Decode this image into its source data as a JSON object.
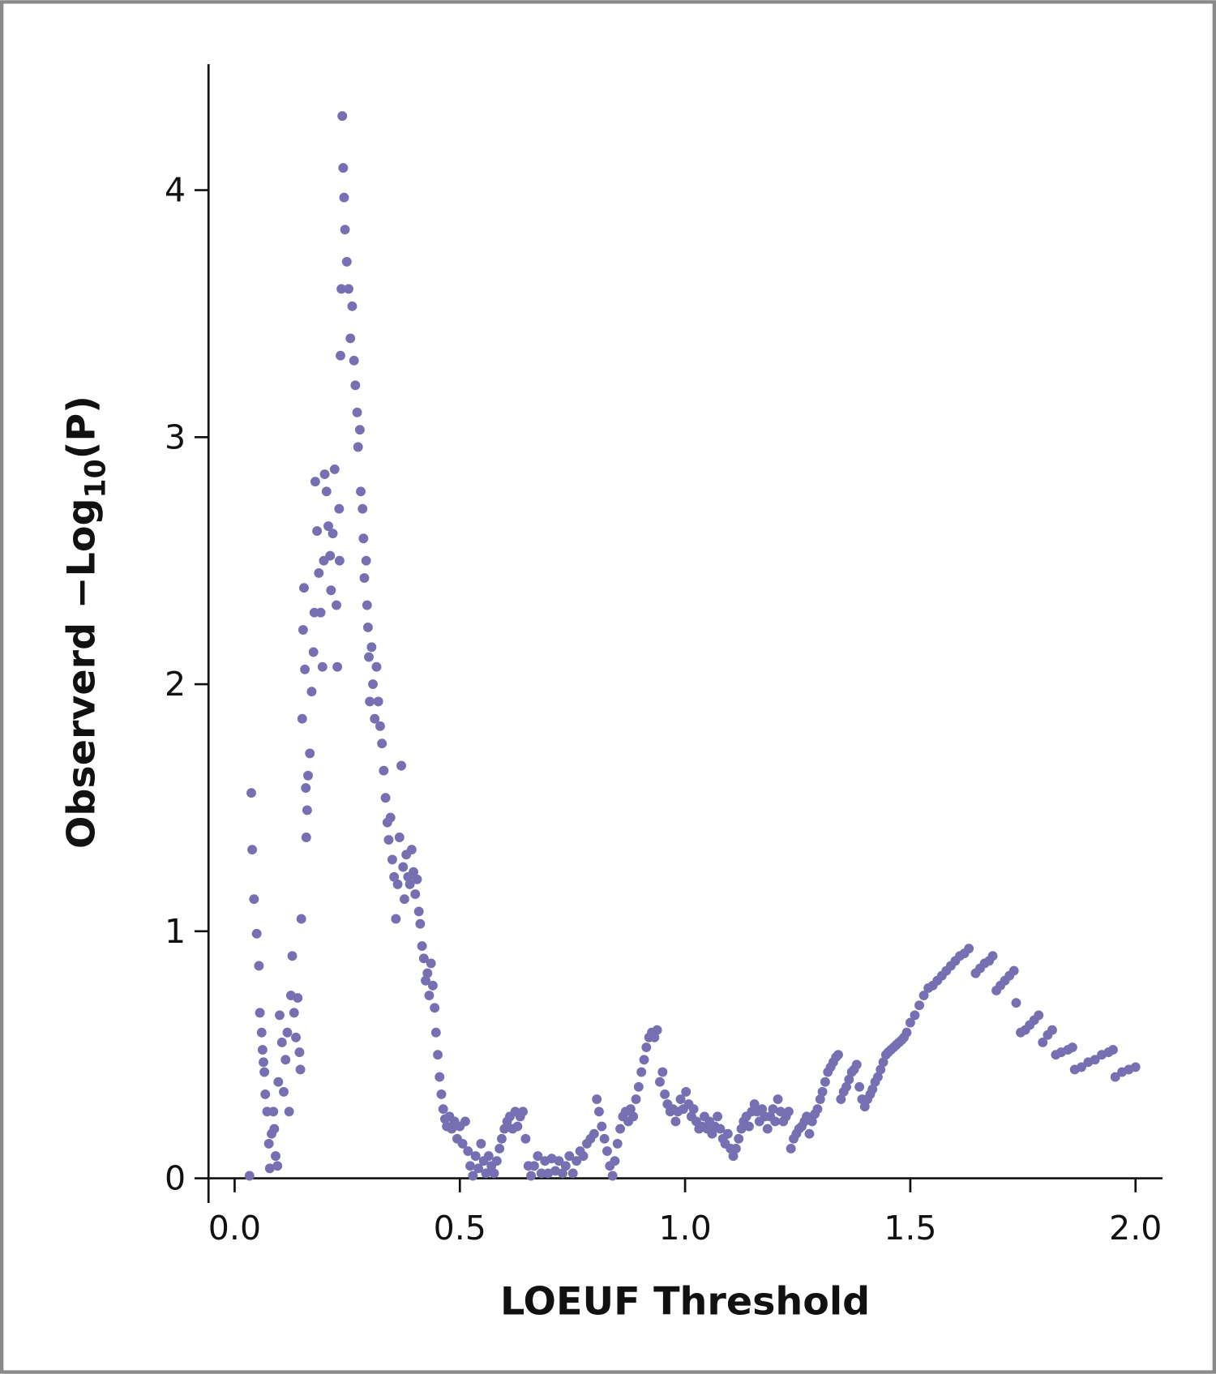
{
  "chart_data": {
    "type": "scatter",
    "x_label": "LOEUF Threshold",
    "y_label": {
      "text": "Observerd −Log",
      "sub": "10",
      "after": "(P)"
    },
    "color": "#7670b3",
    "xlim": [
      -0.058,
      2.06
    ],
    "ylim": [
      -0.1,
      4.51
    ],
    "xticks": [
      {
        "value": 0,
        "label": "0.0"
      },
      0.5,
      {
        "value": 1,
        "label": "1.0"
      },
      1.5,
      {
        "value": 2,
        "label": "2.0"
      }
    ],
    "yticks": [
      0,
      1,
      2,
      3,
      4
    ],
    "x": [
      0.033,
      0.037,
      0.039,
      0.043,
      0.049,
      0.054,
      0.056,
      0.06,
      0.062,
      0.064,
      0.066,
      0.068,
      0.072,
      0.076,
      0.078,
      0.082,
      0.086,
      0.088,
      0.091,
      0.095,
      0.097,
      0.1,
      0.105,
      0.109,
      0.113,
      0.117,
      0.121,
      0.125,
      0.128,
      0.132,
      0.136,
      0.14,
      0.144,
      0.146,
      0.148,
      0.15,
      0.152,
      0.154,
      0.156,
      0.158,
      0.159,
      0.161,
      0.163,
      0.167,
      0.171,
      0.175,
      0.177,
      0.179,
      0.183,
      0.187,
      0.191,
      0.195,
      0.198,
      0.2,
      0.204,
      0.208,
      0.212,
      0.214,
      0.218,
      0.222,
      0.226,
      0.228,
      0.232,
      0.233,
      0.235,
      0.237,
      0.239,
      0.241,
      0.243,
      0.245,
      0.249,
      0.253,
      0.257,
      0.261,
      0.265,
      0.268,
      0.272,
      0.274,
      0.278,
      0.28,
      0.284,
      0.286,
      0.288,
      0.292,
      0.294,
      0.296,
      0.298,
      0.3,
      0.304,
      0.307,
      0.311,
      0.315,
      0.319,
      0.323,
      0.327,
      0.331,
      0.335,
      0.339,
      0.342,
      0.346,
      0.35,
      0.354,
      0.358,
      0.362,
      0.366,
      0.37,
      0.374,
      0.377,
      0.381,
      0.385,
      0.389,
      0.393,
      0.397,
      0.401,
      0.405,
      0.409,
      0.412,
      0.416,
      0.42,
      0.424,
      0.428,
      0.432,
      0.436,
      0.44,
      0.444,
      0.447,
      0.451,
      0.455,
      0.459,
      0.463,
      0.467,
      0.471,
      0.477,
      0.482,
      0.488,
      0.494,
      0.5,
      0.506,
      0.512,
      0.518,
      0.523,
      0.529,
      0.535,
      0.541,
      0.547,
      0.553,
      0.558,
      0.564,
      0.57,
      0.576,
      0.582,
      0.588,
      0.593,
      0.599,
      0.605,
      0.611,
      0.617,
      0.623,
      0.628,
      0.634,
      0.64,
      0.646,
      0.652,
      0.658,
      0.665,
      0.673,
      0.681,
      0.689,
      0.696,
      0.704,
      0.712,
      0.72,
      0.728,
      0.735,
      0.743,
      0.751,
      0.759,
      0.767,
      0.774,
      0.782,
      0.79,
      0.798,
      0.804,
      0.809,
      0.815,
      0.821,
      0.827,
      0.833,
      0.839,
      0.844,
      0.85,
      0.856,
      0.862,
      0.868,
      0.874,
      0.879,
      0.885,
      0.891,
      0.897,
      0.903,
      0.909,
      0.914,
      0.92,
      0.926,
      0.932,
      0.938,
      0.944,
      0.95,
      0.955,
      0.961,
      0.967,
      0.973,
      0.979,
      0.984,
      0.99,
      0.996,
      1.002,
      1.008,
      1.014,
      1.019,
      1.025,
      1.031,
      1.037,
      1.043,
      1.049,
      1.054,
      1.06,
      1.066,
      1.072,
      1.078,
      1.084,
      1.089,
      1.095,
      1.101,
      1.107,
      1.113,
      1.119,
      1.125,
      1.13,
      1.136,
      1.142,
      1.148,
      1.154,
      1.16,
      1.165,
      1.171,
      1.177,
      1.183,
      1.189,
      1.195,
      1.2,
      1.206,
      1.212,
      1.218,
      1.224,
      1.23,
      1.235,
      1.241,
      1.247,
      1.253,
      1.259,
      1.265,
      1.27,
      1.276,
      1.282,
      1.288,
      1.294,
      1.3,
      1.305,
      1.311,
      1.317,
      1.323,
      1.329,
      1.335,
      1.34,
      1.346,
      1.352,
      1.358,
      1.364,
      1.37,
      1.375,
      1.381,
      1.387,
      1.393,
      1.399,
      1.405,
      1.411,
      1.416,
      1.422,
      1.428,
      1.434,
      1.44,
      1.446,
      1.451,
      1.457,
      1.463,
      1.469,
      1.475,
      1.481,
      1.486,
      1.492,
      1.5,
      1.51,
      1.52,
      1.53,
      1.54,
      1.55,
      1.56,
      1.57,
      1.58,
      1.59,
      1.6,
      1.61,
      1.62,
      1.63,
      1.645,
      1.655,
      1.665,
      1.675,
      1.683,
      1.691,
      1.7,
      1.71,
      1.72,
      1.73,
      1.735,
      1.745,
      1.755,
      1.765,
      1.775,
      1.785,
      1.794,
      1.805,
      1.815,
      1.823,
      1.835,
      1.85,
      1.86,
      1.865,
      1.88,
      1.895,
      1.91,
      1.925,
      1.94,
      1.95,
      1.955,
      1.97,
      1.985,
      2.0
    ],
    "y": [
      0.01,
      1.56,
      1.33,
      1.13,
      0.99,
      0.86,
      0.67,
      0.59,
      0.52,
      0.47,
      0.43,
      0.34,
      0.27,
      0.14,
      0.04,
      0.18,
      0.27,
      0.2,
      0.09,
      0.05,
      0.39,
      0.66,
      0.55,
      0.35,
      0.48,
      0.59,
      0.27,
      0.74,
      0.9,
      0.67,
      0.57,
      0.73,
      0.51,
      0.44,
      1.05,
      1.86,
      2.22,
      2.39,
      2.06,
      1.58,
      1.38,
      1.49,
      1.63,
      1.72,
      1.97,
      2.13,
      2.29,
      2.82,
      2.62,
      2.45,
      2.29,
      2.07,
      2.5,
      2.85,
      2.78,
      2.64,
      2.52,
      2.38,
      2.61,
      2.87,
      2.32,
      2.07,
      2.71,
      2.5,
      3.33,
      3.6,
      4.3,
      4.09,
      3.97,
      3.84,
      3.71,
      3.6,
      3.4,
      3.53,
      3.31,
      3.21,
      3.1,
      2.96,
      3.03,
      2.78,
      2.71,
      2.59,
      2.43,
      2.5,
      2.32,
      2.23,
      2.11,
      1.93,
      2.15,
      2.0,
      1.86,
      2.07,
      1.93,
      1.83,
      1.76,
      1.65,
      1.54,
      1.44,
      1.37,
      1.46,
      1.29,
      1.22,
      1.05,
      1.19,
      1.38,
      1.67,
      1.26,
      1.13,
      1.31,
      1.22,
      1.19,
      1.33,
      1.24,
      1.15,
      1.21,
      1.08,
      1.03,
      0.94,
      0.89,
      0.8,
      0.83,
      0.74,
      0.87,
      0.78,
      0.69,
      0.59,
      0.5,
      0.41,
      0.34,
      0.28,
      0.24,
      0.21,
      0.25,
      0.2,
      0.23,
      0.16,
      0.21,
      0.14,
      0.23,
      0.11,
      0.05,
      0.01,
      0.09,
      0.04,
      0.14,
      0.07,
      0.02,
      0.09,
      0.05,
      0.02,
      0.07,
      0.12,
      0.16,
      0.2,
      0.23,
      0.25,
      0.2,
      0.27,
      0.21,
      0.25,
      0.27,
      0.16,
      0.05,
      0.01,
      0.05,
      0.09,
      0.02,
      0.07,
      0.02,
      0.08,
      0.03,
      0.07,
      0.02,
      0.05,
      0.09,
      0.02,
      0.07,
      0.11,
      0.09,
      0.14,
      0.16,
      0.18,
      0.32,
      0.27,
      0.21,
      0.16,
      0.11,
      0.05,
      0.01,
      0.07,
      0.14,
      0.2,
      0.25,
      0.27,
      0.23,
      0.28,
      0.25,
      0.32,
      0.37,
      0.43,
      0.48,
      0.53,
      0.57,
      0.59,
      0.57,
      0.6,
      0.39,
      0.43,
      0.34,
      0.3,
      0.27,
      0.28,
      0.23,
      0.27,
      0.32,
      0.28,
      0.35,
      0.3,
      0.25,
      0.28,
      0.23,
      0.2,
      0.21,
      0.25,
      0.2,
      0.23,
      0.18,
      0.21,
      0.25,
      0.2,
      0.16,
      0.14,
      0.18,
      0.12,
      0.09,
      0.12,
      0.16,
      0.2,
      0.23,
      0.25,
      0.21,
      0.27,
      0.3,
      0.27,
      0.23,
      0.28,
      0.25,
      0.2,
      0.25,
      0.28,
      0.23,
      0.32,
      0.27,
      0.23,
      0.25,
      0.27,
      0.12,
      0.16,
      0.18,
      0.2,
      0.21,
      0.23,
      0.25,
      0.18,
      0.23,
      0.26,
      0.28,
      0.32,
      0.35,
      0.39,
      0.43,
      0.45,
      0.47,
      0.49,
      0.5,
      0.32,
      0.35,
      0.37,
      0.4,
      0.43,
      0.44,
      0.46,
      0.37,
      0.32,
      0.29,
      0.32,
      0.34,
      0.36,
      0.39,
      0.41,
      0.44,
      0.47,
      0.5,
      0.51,
      0.52,
      0.53,
      0.54,
      0.55,
      0.56,
      0.57,
      0.59,
      0.63,
      0.66,
      0.7,
      0.74,
      0.77,
      0.78,
      0.8,
      0.82,
      0.84,
      0.86,
      0.88,
      0.9,
      0.91,
      0.93,
      0.83,
      0.85,
      0.87,
      0.88,
      0.9,
      0.76,
      0.78,
      0.8,
      0.82,
      0.84,
      0.71,
      0.59,
      0.6,
      0.62,
      0.64,
      0.66,
      0.55,
      0.58,
      0.6,
      0.5,
      0.51,
      0.52,
      0.53,
      0.44,
      0.45,
      0.47,
      0.48,
      0.5,
      0.51,
      0.52,
      0.41,
      0.43,
      0.44,
      0.45
    ]
  }
}
